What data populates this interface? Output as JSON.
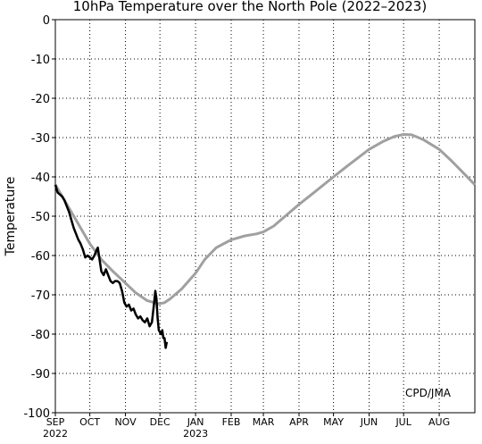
{
  "chart_data": {
    "type": "line",
    "title": "10hPa Temperature over the North Pole (2022–2023)",
    "y_label": "Temperature",
    "annotation": "CPD/JMA",
    "xlim": [
      0,
      365
    ],
    "ylim": [
      -100,
      0
    ],
    "yticks": [
      -100,
      -90,
      -80,
      -70,
      -60,
      -50,
      -40,
      -30,
      -20,
      -10,
      0
    ],
    "xticks": [
      {
        "value": 0,
        "label": "SEP"
      },
      {
        "value": 30,
        "label": "OCT"
      },
      {
        "value": 61,
        "label": "NOV"
      },
      {
        "value": 91,
        "label": "DEC"
      },
      {
        "value": 122,
        "label": "JAN"
      },
      {
        "value": 153,
        "label": "FEB"
      },
      {
        "value": 181,
        "label": "MAR"
      },
      {
        "value": 212,
        "label": "APR"
      },
      {
        "value": 242,
        "label": "MAY"
      },
      {
        "value": 273,
        "label": "JUN"
      },
      {
        "value": 303,
        "label": "JUL"
      },
      {
        "value": 334,
        "label": "AUG"
      }
    ],
    "year_labels": [
      {
        "value": 0,
        "label": "2022"
      },
      {
        "value": 122,
        "label": "2023"
      }
    ],
    "grid": true,
    "series": [
      {
        "color": "#a0a0a0",
        "x": [
          0,
          10,
          20,
          30,
          40,
          50,
          61,
          70,
          80,
          90,
          95,
          100,
          110,
          122,
          130,
          140,
          153,
          165,
          175,
          181,
          190,
          200,
          212,
          225,
          242,
          255,
          273,
          285,
          295,
          303,
          310,
          320,
          334,
          345,
          355,
          365
        ],
        "values": [
          -42,
          -47,
          -52,
          -57,
          -61,
          -64,
          -67,
          -69.5,
          -71.5,
          -72.3,
          -72,
          -71,
          -68.5,
          -64.5,
          -61,
          -58,
          -56,
          -55,
          -54.5,
          -54,
          -52.5,
          -50,
          -47,
          -44,
          -40,
          -37,
          -33,
          -31,
          -29.7,
          -29.2,
          -29.3,
          -30.5,
          -33,
          -36,
          -39,
          -42
        ]
      },
      {
        "color": "#000000",
        "x": [
          0,
          2,
          4,
          6,
          8,
          10,
          12,
          14,
          16,
          18,
          20,
          22,
          24,
          26,
          28,
          30,
          32,
          34,
          36,
          37,
          38,
          40,
          42,
          44,
          46,
          48,
          50,
          52,
          54,
          56,
          58,
          60,
          62,
          64,
          66,
          68,
          70,
          72,
          74,
          76,
          78,
          80,
          82,
          84,
          86,
          87,
          88,
          89,
          90,
          92,
          93,
          94,
          95,
          96,
          97
        ],
        "values": [
          -42,
          -44,
          -44.5,
          -45,
          -46,
          -47.5,
          -49,
          -51,
          -53,
          -54.5,
          -56,
          -57,
          -58.5,
          -60.5,
          -60,
          -60.5,
          -61,
          -60,
          -58.5,
          -58,
          -60,
          -64,
          -65,
          -63.5,
          -65,
          -66.5,
          -67,
          -66.5,
          -66.5,
          -67,
          -69,
          -72,
          -73,
          -72.5,
          -74,
          -73.5,
          -75,
          -76,
          -75.5,
          -76.5,
          -77,
          -76,
          -78,
          -77,
          -72,
          -69,
          -71,
          -76,
          -79,
          -80,
          -79,
          -81,
          -81,
          -83.5,
          -82
        ]
      }
    ]
  }
}
